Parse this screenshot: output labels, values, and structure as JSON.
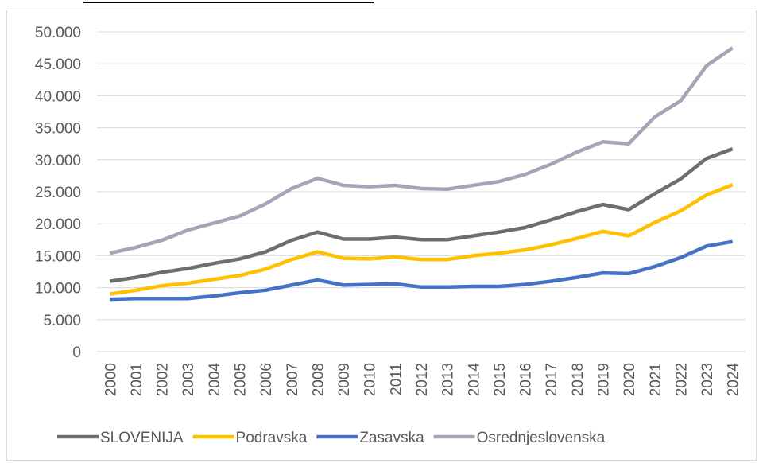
{
  "chart_data": {
    "type": "line",
    "categories": [
      "2000",
      "2001",
      "2002",
      "2003",
      "2004",
      "2005",
      "2006",
      "2007",
      "2008",
      "2009",
      "2010",
      "2011",
      "2012",
      "2013",
      "2014",
      "2015",
      "2016",
      "2017",
      "2018",
      "2019",
      "2020",
      "2021",
      "2022",
      "2023",
      "2024"
    ],
    "series": [
      {
        "name": "SLOVENIJA",
        "color": "#6e6e6e",
        "values": [
          11000,
          11600,
          12400,
          13000,
          13800,
          14500,
          15600,
          17400,
          18700,
          17600,
          17600,
          17900,
          17500,
          17500,
          18100,
          18700,
          19400,
          20600,
          21900,
          23000,
          22200,
          24700,
          27000,
          30200,
          31700
        ]
      },
      {
        "name": "Podravska",
        "color": "#ffc000",
        "values": [
          9000,
          9600,
          10300,
          10700,
          11300,
          11900,
          12900,
          14400,
          15600,
          14600,
          14500,
          14800,
          14400,
          14400,
          15000,
          15400,
          15900,
          16700,
          17700,
          18800,
          18100,
          20200,
          22000,
          24500,
          26100
        ]
      },
      {
        "name": "Zasavska",
        "color": "#4472c4",
        "values": [
          8200,
          8300,
          8300,
          8300,
          8700,
          9200,
          9600,
          10400,
          11200,
          10400,
          10500,
          10600,
          10100,
          10100,
          10200,
          10200,
          10500,
          11000,
          11600,
          12300,
          12200,
          13300,
          14700,
          16500,
          17200
        ]
      },
      {
        "name": "Osrednjeslovenska",
        "color": "#a5a5b9",
        "values": [
          15400,
          16300,
          17400,
          19000,
          20100,
          21200,
          23100,
          25500,
          27100,
          26000,
          25800,
          26000,
          25500,
          25400,
          26000,
          26600,
          27700,
          29300,
          31200,
          32800,
          32500,
          36700,
          39200,
          44700,
          47500
        ]
      }
    ],
    "ylim": [
      0,
      50000
    ],
    "yticks": [
      0,
      {
        "value": 5000,
        "label": "5.000"
      },
      {
        "value": 10000,
        "label": "10.000"
      },
      {
        "value": 15000,
        "label": "15.000"
      },
      {
        "value": 20000,
        "label": "20.000"
      },
      {
        "value": 25000,
        "label": "25.000"
      },
      {
        "value": 30000,
        "label": "30.000"
      },
      {
        "value": 35000,
        "label": "35.000"
      },
      {
        "value": 40000,
        "label": "40.000"
      },
      {
        "value": 45000,
        "label": "45.000"
      },
      {
        "value": 50000,
        "label": "50.000"
      }
    ],
    "grid": true,
    "legend": "bottom"
  }
}
